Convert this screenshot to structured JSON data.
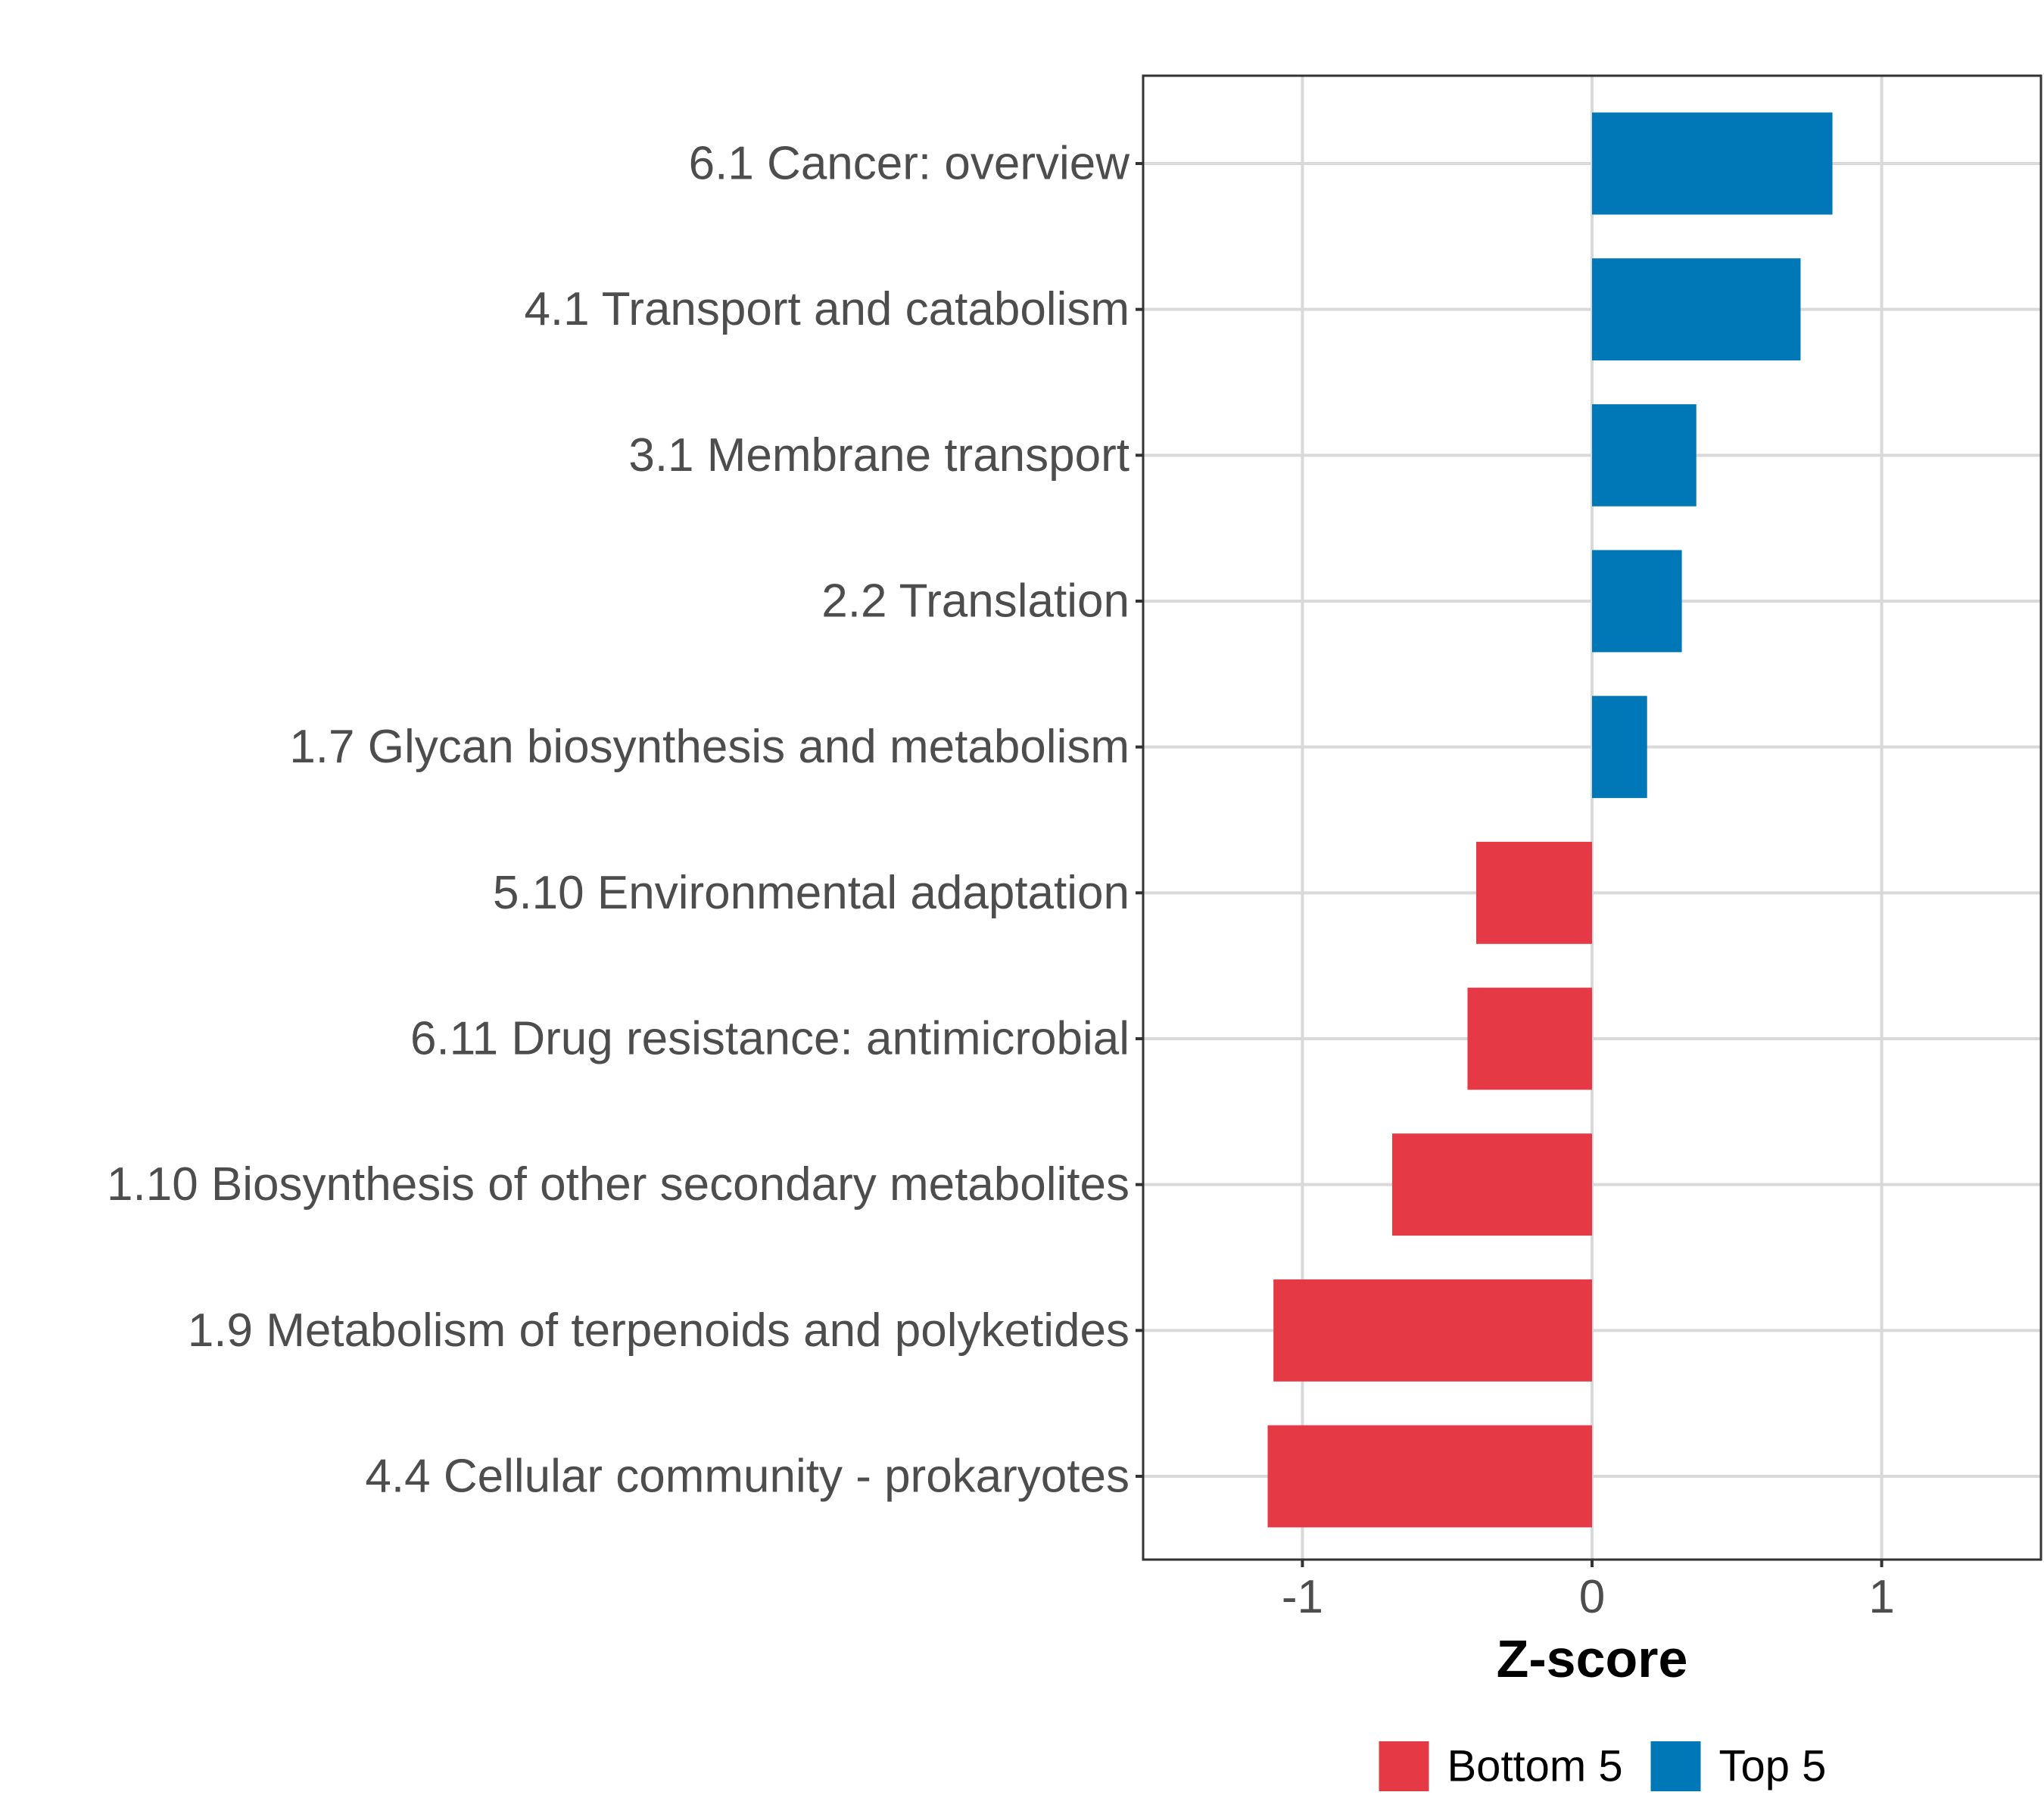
{
  "chart_data": {
    "type": "bar",
    "orientation": "horizontal",
    "title": "",
    "xlabel": "Z-score",
    "ylabel": "",
    "xlim": [
      -1.55,
      1.55
    ],
    "x_ticks": [
      -1,
      0,
      1
    ],
    "x_tick_labels": [
      "-1",
      "0",
      "1"
    ],
    "grid": true,
    "legend_position": "bottom",
    "categories": [
      "6.1 Cancer: overview",
      "4.1 Transport and catabolism",
      "3.1 Membrane transport",
      "2.2 Translation",
      "1.7 Glycan biosynthesis and metabolism",
      "5.10 Environmental adaptation",
      "6.11 Drug resistance: antimicrobial",
      "1.10 Biosynthesis of other secondary metabolites",
      "1.9 Metabolism of terpenoids and polyketides",
      "4.4 Cellular community - prokaryotes"
    ],
    "values": [
      0.83,
      0.72,
      0.36,
      0.31,
      0.19,
      -0.4,
      -0.43,
      -0.69,
      -1.1,
      -1.12
    ],
    "groups": [
      "Top 5",
      "Top 5",
      "Top 5",
      "Top 5",
      "Top 5",
      "Bottom 5",
      "Bottom 5",
      "Bottom 5",
      "Bottom 5",
      "Bottom 5"
    ],
    "legend": [
      {
        "label": "Bottom 5",
        "color": "#e63946"
      },
      {
        "label": "Top 5",
        "color": "#0077b6"
      }
    ]
  }
}
